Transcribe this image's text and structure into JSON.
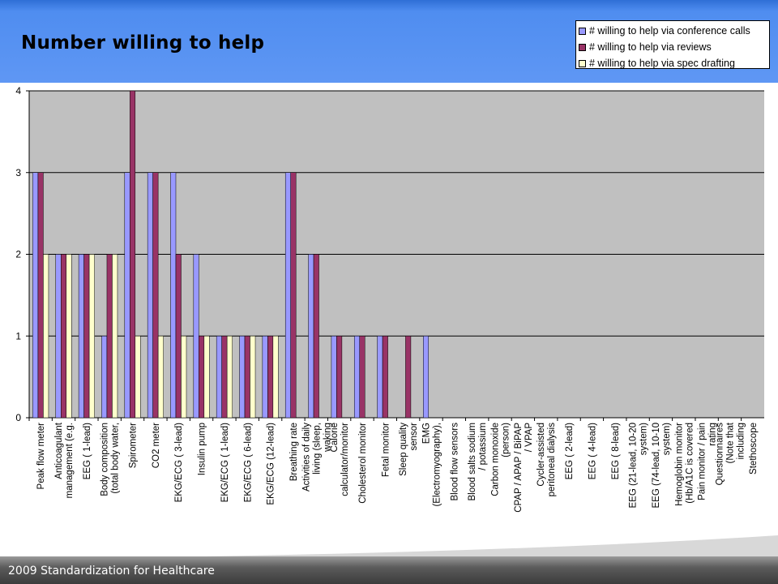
{
  "slide": {
    "title": "Number willing to help",
    "footer": "2009 Standardization for Healthcare"
  },
  "colors": {
    "header": "#5f97f4",
    "plot_background": "#c0c0c0",
    "series": [
      "#9999ff",
      "#993366",
      "#ffffcc"
    ]
  },
  "chart_data": {
    "type": "bar",
    "title": "Number willing to help",
    "ylim": [
      0,
      4
    ],
    "yticks": [
      0,
      1,
      2,
      3,
      4
    ],
    "grid": true,
    "legend_position": "top-right",
    "categories": [
      "Peak flow meter",
      "Anticoagulant management (e.g.",
      "EEG ( 1-lead)",
      "Body composition (total body water,",
      "Spirometer",
      "CO2 meter",
      "EKG/ECG ( 3-lead)",
      "Insulin pump",
      "EKG/ECG ( 1-lead)",
      "EKG/ECG ( 6-lead)",
      "EKG/ECG (12-lead)",
      "Breathing rate",
      "Activities of daily living (sleep, waking",
      "Calorie calculator/monitor",
      "Cholesterol monitor",
      "Fetal monitor",
      "Sleep quality sensor",
      "EMG (Electromyography),",
      "Blood flow sensors",
      "Blood salts sodium / potassium",
      "Carbon monoxide (person)",
      "CPAP / APAP / BiPAP / VPAP",
      "Cycler-assisted peritoneal dialysis",
      "EEG ( 2-lead)",
      "EEG ( 4-lead)",
      "EEG ( 8-lead)",
      "EEG (21-lead, 10-20 system)",
      "EEG (74-lead, 10-10 system)",
      "Hemoglobin monitor (Hb/A1C is covered",
      "Pain monitor / pain rating",
      "Questionnaires (Note that including",
      "Stethoscope"
    ],
    "series": [
      {
        "name": "# willing to help via conference calls",
        "values": [
          3,
          2,
          2,
          1,
          3,
          3,
          3,
          2,
          1,
          1,
          1,
          3,
          2,
          1,
          1,
          1,
          0,
          1,
          0,
          0,
          0,
          0,
          0,
          0,
          0,
          0,
          0,
          0,
          0,
          0,
          0,
          0
        ]
      },
      {
        "name": "# willing to help via reviews",
        "values": [
          3,
          2,
          2,
          2,
          4,
          3,
          2,
          1,
          1,
          1,
          1,
          3,
          2,
          1,
          1,
          1,
          1,
          0,
          0,
          0,
          0,
          0,
          0,
          0,
          0,
          0,
          0,
          0,
          0,
          0,
          0,
          0
        ]
      },
      {
        "name": "# willing to help via spec drafting",
        "values": [
          2,
          2,
          2,
          2,
          1,
          1,
          1,
          1,
          1,
          1,
          1,
          0,
          0,
          0,
          0,
          0,
          0,
          0,
          0,
          0,
          0,
          0,
          0,
          0,
          0,
          0,
          0,
          0,
          0,
          0,
          0,
          0
        ]
      }
    ]
  }
}
